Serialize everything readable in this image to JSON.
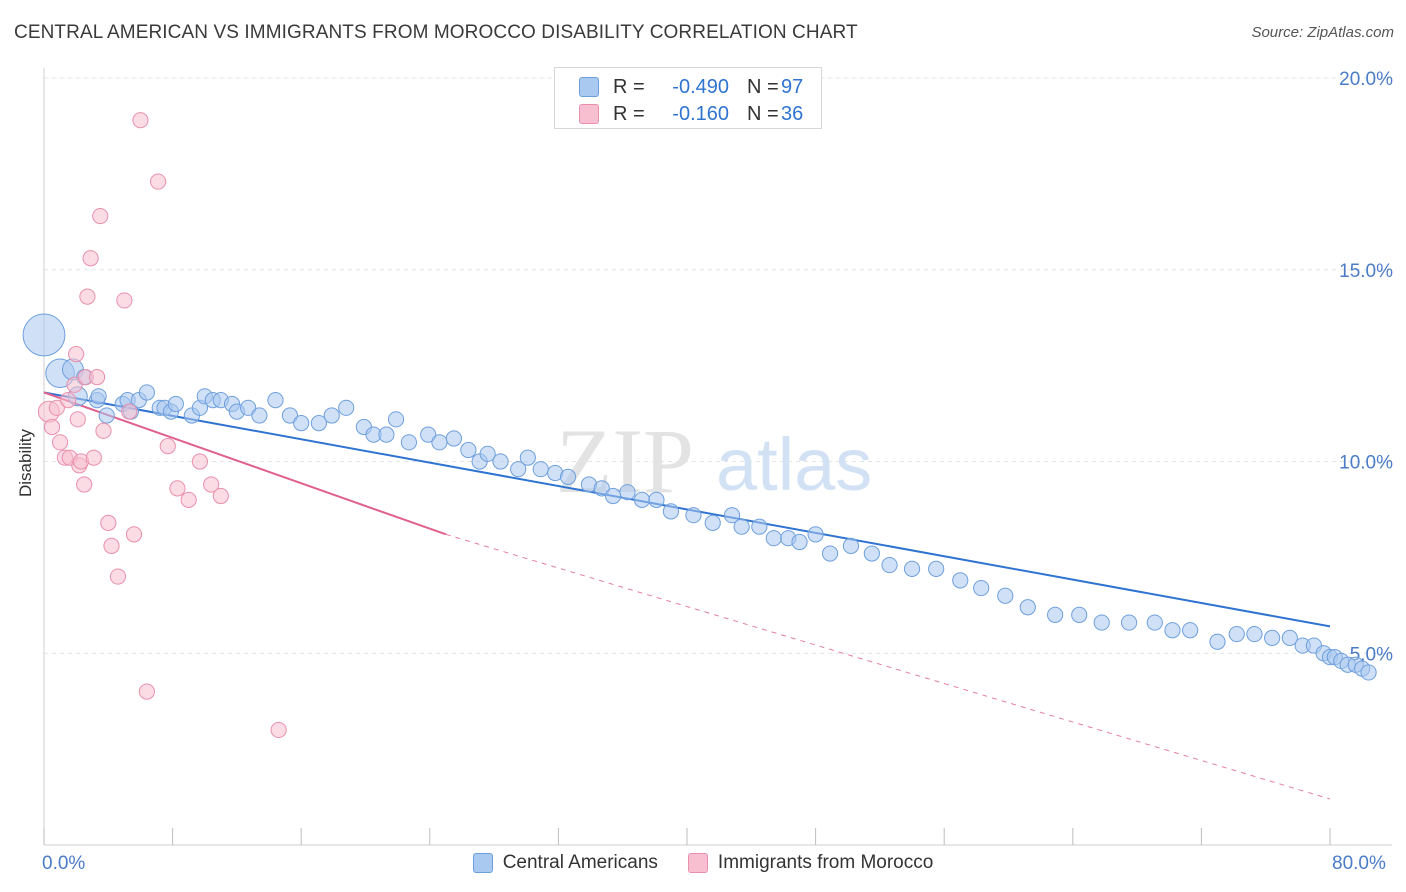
{
  "title": "CENTRAL AMERICAN VS IMMIGRANTS FROM MOROCCO DISABILITY CORRELATION CHART",
  "source": "Source: ZipAtlas.com",
  "watermark": {
    "zip": "ZIP",
    "atlas": "atlas"
  },
  "colors": {
    "blue_fill": "#a9c9f0",
    "blue_stroke": "#6e9fdd",
    "blue_line": "#2f74d0",
    "pink_fill": "#f7bfd0",
    "pink_stroke": "#e98fae",
    "pink_line": "#e0608e",
    "axis_text": "#4a7cc7",
    "grid": "#e4e4e4"
  },
  "legend": {
    "rows": [
      {
        "r_label": "R =",
        "r_value": "-0.490",
        "n_label": "N =",
        "n_value": "97",
        "color_key": "blue"
      },
      {
        "r_label": "R =",
        "r_value": "-0.160",
        "n_label": "N =",
        "n_value": "36",
        "color_key": "pink"
      }
    ]
  },
  "bottom_legend": [
    {
      "label": "Central Americans",
      "color_key": "blue"
    },
    {
      "label": "Immigrants from Morocco",
      "color_key": "pink"
    }
  ],
  "chart_data": {
    "type": "scatter",
    "title": "CENTRAL AMERICAN VS IMMIGRANTS FROM MOROCCO DISABILITY CORRELATION CHART",
    "xlabel": "",
    "ylabel": "Disability",
    "xlim": [
      0,
      80
    ],
    "ylim": [
      0,
      20
    ],
    "x_tick_labels": [
      "0.0%",
      "80.0%"
    ],
    "y_ticks": [
      5,
      10,
      15,
      20
    ],
    "y_tick_labels": [
      "5.0%",
      "10.0%",
      "15.0%",
      "20.0%"
    ],
    "grid": true,
    "legend_position": "top-center",
    "series": [
      {
        "name": "Central Americans",
        "color": "#6e9fdd",
        "trend": {
          "x": [
            0,
            80
          ],
          "y": [
            11.8,
            5.7
          ],
          "style": "solid"
        },
        "points": [
          [
            0.0,
            13.3,
            2.2
          ],
          [
            1.0,
            12.3,
            1.5
          ],
          [
            1.8,
            12.4,
            1.1
          ],
          [
            2.1,
            11.7,
            1.0
          ],
          [
            2.5,
            12.2,
            0.8
          ],
          [
            3.3,
            11.6,
            0.8
          ],
          [
            3.4,
            11.7,
            0.8
          ],
          [
            3.9,
            11.2,
            0.8
          ],
          [
            4.9,
            11.5,
            0.8
          ],
          [
            5.2,
            11.6,
            0.8
          ],
          [
            5.4,
            11.3,
            0.8
          ],
          [
            5.9,
            11.6,
            0.8
          ],
          [
            6.4,
            11.8,
            0.8
          ],
          [
            7.2,
            11.4,
            0.8
          ],
          [
            7.5,
            11.4,
            0.8
          ],
          [
            7.9,
            11.3,
            0.8
          ],
          [
            8.2,
            11.5,
            0.8
          ],
          [
            9.2,
            11.2,
            0.8
          ],
          [
            9.7,
            11.4,
            0.8
          ],
          [
            10.0,
            11.7,
            0.8
          ],
          [
            10.5,
            11.6,
            0.8
          ],
          [
            11.0,
            11.6,
            0.8
          ],
          [
            11.7,
            11.5,
            0.8
          ],
          [
            12.0,
            11.3,
            0.8
          ],
          [
            12.7,
            11.4,
            0.8
          ],
          [
            13.4,
            11.2,
            0.8
          ],
          [
            14.4,
            11.6,
            0.8
          ],
          [
            15.3,
            11.2,
            0.8
          ],
          [
            16.0,
            11.0,
            0.8
          ],
          [
            17.1,
            11.0,
            0.8
          ],
          [
            17.9,
            11.2,
            0.8
          ],
          [
            18.8,
            11.4,
            0.8
          ],
          [
            19.9,
            10.9,
            0.8
          ],
          [
            20.5,
            10.7,
            0.8
          ],
          [
            21.3,
            10.7,
            0.8
          ],
          [
            21.9,
            11.1,
            0.8
          ],
          [
            22.7,
            10.5,
            0.8
          ],
          [
            23.9,
            10.7,
            0.8
          ],
          [
            24.6,
            10.5,
            0.8
          ],
          [
            25.5,
            10.6,
            0.8
          ],
          [
            26.4,
            10.3,
            0.8
          ],
          [
            27.1,
            10.0,
            0.8
          ],
          [
            27.6,
            10.2,
            0.8
          ],
          [
            28.4,
            10.0,
            0.8
          ],
          [
            29.5,
            9.8,
            0.8
          ],
          [
            30.1,
            10.1,
            0.8
          ],
          [
            30.9,
            9.8,
            0.8
          ],
          [
            31.8,
            9.7,
            0.8
          ],
          [
            32.6,
            9.6,
            0.8
          ],
          [
            33.9,
            9.4,
            0.8
          ],
          [
            34.7,
            9.3,
            0.8
          ],
          [
            35.4,
            9.1,
            0.8
          ],
          [
            36.3,
            9.2,
            0.8
          ],
          [
            37.2,
            9.0,
            0.8
          ],
          [
            38.1,
            9.0,
            0.8
          ],
          [
            39.0,
            8.7,
            0.8
          ],
          [
            40.4,
            8.6,
            0.8
          ],
          [
            41.6,
            8.4,
            0.8
          ],
          [
            42.8,
            8.6,
            0.8
          ],
          [
            43.4,
            8.3,
            0.8
          ],
          [
            44.5,
            8.3,
            0.8
          ],
          [
            45.4,
            8.0,
            0.8
          ],
          [
            46.3,
            8.0,
            0.8
          ],
          [
            47.0,
            7.9,
            0.8
          ],
          [
            48.0,
            8.1,
            0.8
          ],
          [
            48.9,
            7.6,
            0.8
          ],
          [
            50.2,
            7.8,
            0.8
          ],
          [
            51.5,
            7.6,
            0.8
          ],
          [
            52.6,
            7.3,
            0.8
          ],
          [
            54.0,
            7.2,
            0.8
          ],
          [
            55.5,
            7.2,
            0.8
          ],
          [
            57.0,
            6.9,
            0.8
          ],
          [
            58.3,
            6.7,
            0.8
          ],
          [
            59.8,
            6.5,
            0.8
          ],
          [
            61.2,
            6.2,
            0.8
          ],
          [
            62.9,
            6.0,
            0.8
          ],
          [
            64.4,
            6.0,
            0.8
          ],
          [
            65.8,
            5.8,
            0.8
          ],
          [
            67.5,
            5.8,
            0.8
          ],
          [
            69.1,
            5.8,
            0.8
          ],
          [
            70.2,
            5.6,
            0.8
          ],
          [
            71.3,
            5.6,
            0.8
          ],
          [
            73.0,
            5.3,
            0.8
          ],
          [
            74.2,
            5.5,
            0.8
          ],
          [
            75.3,
            5.5,
            0.8
          ],
          [
            76.4,
            5.4,
            0.8
          ],
          [
            77.5,
            5.4,
            0.8
          ],
          [
            78.3,
            5.2,
            0.8
          ],
          [
            79.0,
            5.2,
            0.8
          ],
          [
            79.6,
            5.0,
            0.8
          ],
          [
            80.0,
            4.9,
            0.8
          ],
          [
            80.3,
            4.9,
            0.8
          ],
          [
            80.7,
            4.8,
            0.8
          ],
          [
            81.1,
            4.7,
            0.8
          ],
          [
            81.6,
            4.7,
            0.8
          ],
          [
            82.0,
            4.6,
            0.8
          ],
          [
            82.4,
            4.5,
            0.8
          ]
        ]
      },
      {
        "name": "Immigrants from Morocco",
        "color": "#e98fae",
        "trend": {
          "x": [
            0,
            25
          ],
          "y": [
            11.8,
            8.1
          ],
          "style": "solid",
          "extension": {
            "x": [
              25,
              80
            ],
            "y": [
              8.1,
              1.2
            ],
            "style": "dashed"
          }
        },
        "points": [
          [
            0.3,
            11.3,
            1.1
          ],
          [
            0.5,
            10.9,
            0.8
          ],
          [
            0.8,
            11.4,
            0.8
          ],
          [
            1.0,
            10.5,
            0.8
          ],
          [
            1.3,
            10.1,
            0.8
          ],
          [
            1.5,
            11.6,
            0.8
          ],
          [
            1.6,
            10.1,
            0.8
          ],
          [
            1.9,
            12.0,
            0.8
          ],
          [
            2.0,
            12.8,
            0.8
          ],
          [
            2.1,
            11.1,
            0.8
          ],
          [
            2.2,
            9.9,
            0.8
          ],
          [
            2.3,
            10.0,
            0.8
          ],
          [
            2.5,
            9.4,
            0.8
          ],
          [
            2.6,
            12.2,
            0.8
          ],
          [
            2.7,
            14.3,
            0.8
          ],
          [
            2.9,
            15.3,
            0.8
          ],
          [
            3.1,
            10.1,
            0.8
          ],
          [
            3.3,
            12.2,
            0.8
          ],
          [
            3.5,
            16.4,
            0.8
          ],
          [
            3.7,
            10.8,
            0.8
          ],
          [
            4.0,
            8.4,
            0.8
          ],
          [
            4.2,
            7.8,
            0.8
          ],
          [
            4.6,
            7.0,
            0.8
          ],
          [
            5.0,
            14.2,
            0.8
          ],
          [
            5.3,
            11.3,
            0.8
          ],
          [
            5.6,
            8.1,
            0.8
          ],
          [
            6.0,
            18.9,
            0.8
          ],
          [
            6.4,
            4.0,
            0.8
          ],
          [
            7.1,
            17.3,
            0.8
          ],
          [
            7.7,
            10.4,
            0.8
          ],
          [
            8.3,
            9.3,
            0.8
          ],
          [
            9.0,
            9.0,
            0.8
          ],
          [
            9.7,
            10.0,
            0.8
          ],
          [
            10.4,
            9.4,
            0.8
          ],
          [
            11.0,
            9.1,
            0.8
          ],
          [
            14.6,
            3.0,
            0.8
          ]
        ]
      }
    ]
  }
}
